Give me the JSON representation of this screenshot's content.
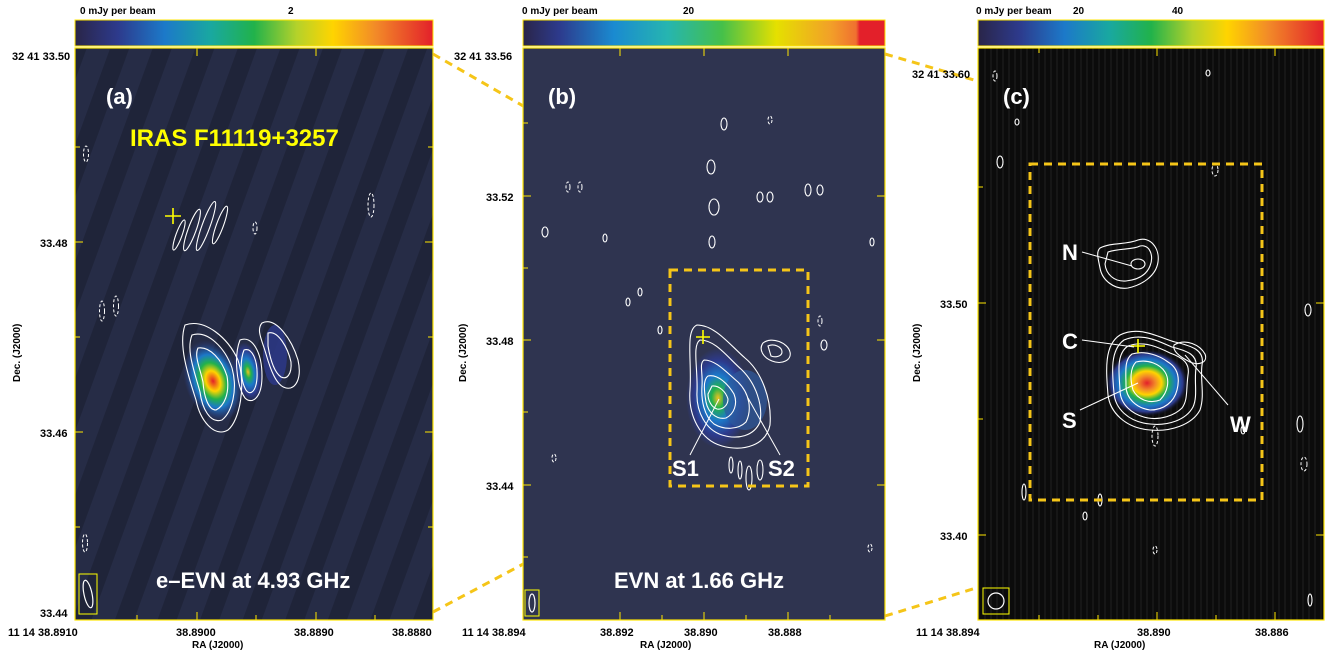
{
  "panels": [
    {
      "id": "a",
      "label": "(a)",
      "source_name": "IRAS F11119+3257",
      "caption": "e–EVN at 4.93 GHz",
      "colorbar": {
        "start_label": "0 mJy per beam",
        "mid_label": "2"
      },
      "y_top_label": "32 41 33.50",
      "y_ticks": [
        "33.48",
        "33.46",
        "33.44"
      ],
      "x_first_label": "11 14 38.8910",
      "x_ticks": [
        "38.8900",
        "38.8890",
        "38.8880"
      ],
      "y_axis_label": "Dec. (J2000)",
      "x_axis_label": "RA (J2000)",
      "background": "#252b44"
    },
    {
      "id": "b",
      "label": "(b)",
      "caption": "EVN at 1.66 GHz",
      "colorbar": {
        "start_label": "0 mJy per beam",
        "mid_label": "20"
      },
      "y_top_label": "32 41 33.56",
      "y_ticks": [
        "33.52",
        "33.48",
        "33.44"
      ],
      "x_first_label": "11 14 38.894",
      "x_ticks": [
        "38.892",
        "38.890",
        "38.888"
      ],
      "y_axis_label": "Dec. (J2000)",
      "x_axis_label": "RA (J2000)",
      "components": [
        "S1",
        "S2"
      ],
      "background": "#2f3450"
    },
    {
      "id": "c",
      "label": "(c)",
      "colorbar": {
        "start_label": "0 mJy per beam",
        "mid_label": "20",
        "end_label": "40"
      },
      "y_top_label": "32 41 33.60",
      "y_ticks": [
        "33.50",
        "33.40"
      ],
      "x_first_label": "11 14 38.894",
      "x_ticks": [
        "38.890",
        "38.886"
      ],
      "y_axis_label": "Dec. (J2000)",
      "x_axis_label": "RA (J2000)",
      "components": [
        "N",
        "C",
        "S",
        "W"
      ],
      "background": "#0a0a0a"
    }
  ],
  "colors": {
    "frame": "#ffe600",
    "zoom_box": "#f5c518",
    "contour": "#ffffff",
    "source_text": "#ffff00",
    "peak": "#e02020"
  }
}
